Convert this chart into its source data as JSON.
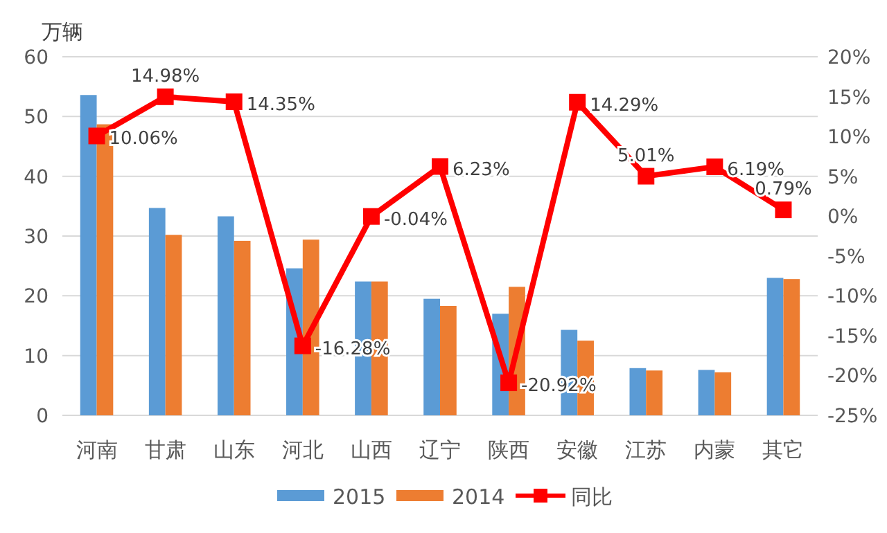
{
  "chart_data": {
    "type": "bar",
    "ylabel": "万辆",
    "categories": [
      "河南",
      "甘肃",
      "山东",
      "河北",
      "山西",
      "辽宁",
      "陕西",
      "安徽",
      "江苏",
      "内蒙",
      "其它"
    ],
    "series": [
      {
        "name": "2015",
        "color": "#5b9bd5",
        "values": [
          53.6,
          34.7,
          33.3,
          24.6,
          22.4,
          19.5,
          17.0,
          14.3,
          7.9,
          7.6,
          23.0
        ]
      },
      {
        "name": "2014",
        "color": "#ed7d31",
        "values": [
          48.7,
          30.2,
          29.2,
          29.4,
          22.4,
          18.3,
          21.5,
          12.5,
          7.5,
          7.2,
          22.8
        ]
      },
      {
        "name": "同比",
        "type": "line",
        "axis": "y2",
        "color": "#ff0000",
        "marker": "square",
        "values": [
          10.06,
          14.98,
          14.35,
          -16.28,
          -0.04,
          6.23,
          -20.92,
          14.29,
          5.01,
          6.19,
          0.79
        ],
        "value_labels": [
          "10.06%",
          "14.98%",
          "14.35%",
          "-16.28%",
          "-0.04%",
          "6.23%",
          "-20.92%",
          "14.29%",
          "5.01%",
          "6.19%",
          "0.79%"
        ]
      }
    ],
    "ylim": [
      0,
      60
    ],
    "yticks": [
      0,
      10,
      20,
      30,
      40,
      50,
      60
    ],
    "y2lim": [
      -25,
      20
    ],
    "y2ticks": [
      {
        "value": -25,
        "label": "-25%"
      },
      {
        "value": -20,
        "label": "-20%"
      },
      {
        "value": -15,
        "label": "-15%"
      },
      {
        "value": -10,
        "label": "-10%"
      },
      {
        "value": -5,
        "label": "-5%"
      },
      {
        "value": 0,
        "label": "0%"
      },
      {
        "value": 5,
        "label": "5%"
      },
      {
        "value": 10,
        "label": "10%"
      },
      {
        "value": 15,
        "label": "15%"
      },
      {
        "value": 20,
        "label": "20%"
      }
    ],
    "grid": "y",
    "legend": "bottom"
  }
}
